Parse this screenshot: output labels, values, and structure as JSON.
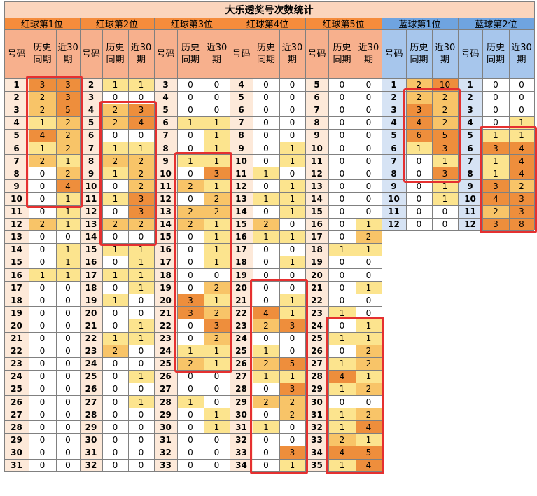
{
  "title": "大乐透奖号次数统计",
  "groups": [
    {
      "label": "红球第1位",
      "kind": "red",
      "rows": [
        [
          1,
          3,
          3
        ],
        [
          2,
          2,
          3
        ],
        [
          3,
          2,
          5
        ],
        [
          4,
          1,
          2
        ],
        [
          5,
          4,
          2
        ],
        [
          6,
          1,
          2
        ],
        [
          7,
          2,
          1
        ],
        [
          8,
          0,
          2
        ],
        [
          9,
          0,
          4
        ],
        [
          10,
          0,
          1
        ],
        [
          11,
          0,
          1
        ],
        [
          12,
          2,
          1
        ],
        [
          13,
          0,
          0
        ],
        [
          14,
          0,
          1
        ],
        [
          15,
          0,
          1
        ],
        [
          16,
          1,
          1
        ],
        [
          17,
          0,
          0
        ],
        [
          18,
          0,
          0
        ],
        [
          19,
          0,
          0
        ],
        [
          20,
          0,
          0
        ],
        [
          21,
          0,
          0
        ],
        [
          22,
          0,
          0
        ],
        [
          23,
          0,
          0
        ],
        [
          24,
          0,
          0
        ],
        [
          25,
          0,
          0
        ],
        [
          26,
          0,
          0
        ],
        [
          27,
          0,
          0
        ],
        [
          28,
          0,
          0
        ],
        [
          29,
          0,
          0
        ],
        [
          30,
          0,
          0
        ],
        [
          31,
          0,
          0
        ]
      ]
    },
    {
      "label": "红球第2位",
      "kind": "red",
      "rows": [
        [
          2,
          1,
          1
        ],
        [
          3,
          0,
          0
        ],
        [
          4,
          2,
          3
        ],
        [
          5,
          2,
          4
        ],
        [
          6,
          0,
          0
        ],
        [
          7,
          1,
          1
        ],
        [
          8,
          2,
          2
        ],
        [
          9,
          1,
          2
        ],
        [
          10,
          0,
          2
        ],
        [
          11,
          1,
          3
        ],
        [
          12,
          0,
          3
        ],
        [
          13,
          2,
          2
        ],
        [
          14,
          0,
          0
        ],
        [
          15,
          1,
          1
        ],
        [
          16,
          0,
          1
        ],
        [
          17,
          1,
          1
        ],
        [
          18,
          0,
          1
        ],
        [
          19,
          1,
          0
        ],
        [
          20,
          0,
          0
        ],
        [
          21,
          0,
          1
        ],
        [
          22,
          1,
          1
        ],
        [
          23,
          2,
          0
        ],
        [
          24,
          0,
          0
        ],
        [
          25,
          0,
          1
        ],
        [
          26,
          0,
          0
        ],
        [
          27,
          0,
          1
        ],
        [
          28,
          0,
          0
        ],
        [
          29,
          0,
          0
        ],
        [
          30,
          0,
          0
        ],
        [
          31,
          0,
          0
        ],
        [
          32,
          0,
          0
        ]
      ]
    },
    {
      "label": "红球第3位",
      "kind": "red",
      "rows": [
        [
          3,
          0,
          0
        ],
        [
          4,
          0,
          0
        ],
        [
          5,
          0,
          0
        ],
        [
          6,
          1,
          1
        ],
        [
          7,
          0,
          1
        ],
        [
          8,
          0,
          1
        ],
        [
          9,
          1,
          1
        ],
        [
          10,
          0,
          3
        ],
        [
          11,
          2,
          1
        ],
        [
          12,
          0,
          2
        ],
        [
          13,
          2,
          2
        ],
        [
          14,
          2,
          1
        ],
        [
          15,
          0,
          1
        ],
        [
          16,
          0,
          1
        ],
        [
          17,
          0,
          1
        ],
        [
          18,
          0,
          0
        ],
        [
          19,
          0,
          2
        ],
        [
          20,
          3,
          1
        ],
        [
          21,
          3,
          2
        ],
        [
          22,
          0,
          3
        ],
        [
          23,
          0,
          2
        ],
        [
          24,
          1,
          1
        ],
        [
          25,
          2,
          1
        ],
        [
          26,
          0,
          0
        ],
        [
          27,
          0,
          0
        ],
        [
          28,
          1,
          0
        ],
        [
          29,
          0,
          1
        ],
        [
          30,
          0,
          1
        ],
        [
          31,
          0,
          0
        ],
        [
          32,
          0,
          0
        ],
        [
          33,
          0,
          0
        ]
      ]
    },
    {
      "label": "红球第4位",
      "kind": "red",
      "rows": [
        [
          4,
          0,
          0
        ],
        [
          5,
          0,
          0
        ],
        [
          6,
          0,
          0
        ],
        [
          7,
          0,
          0
        ],
        [
          8,
          0,
          0
        ],
        [
          9,
          0,
          1
        ],
        [
          10,
          0,
          1
        ],
        [
          11,
          1,
          0
        ],
        [
          12,
          0,
          1
        ],
        [
          13,
          1,
          1
        ],
        [
          14,
          0,
          1
        ],
        [
          15,
          2,
          0
        ],
        [
          16,
          1,
          1
        ],
        [
          17,
          0,
          0
        ],
        [
          18,
          0,
          1
        ],
        [
          19,
          0,
          0
        ],
        [
          20,
          0,
          0
        ],
        [
          21,
          0,
          1
        ],
        [
          22,
          4,
          1
        ],
        [
          23,
          2,
          3
        ],
        [
          24,
          0,
          0
        ],
        [
          25,
          1,
          0
        ],
        [
          26,
          2,
          5
        ],
        [
          27,
          1,
          1
        ],
        [
          28,
          0,
          3
        ],
        [
          29,
          2,
          2
        ],
        [
          30,
          0,
          2
        ],
        [
          31,
          1,
          0
        ],
        [
          32,
          0,
          0
        ],
        [
          33,
          0,
          3
        ],
        [
          34,
          0,
          1
        ]
      ]
    },
    {
      "label": "红球第5位",
      "kind": "red",
      "rows": [
        [
          5,
          0,
          0
        ],
        [
          6,
          0,
          0
        ],
        [
          7,
          0,
          0
        ],
        [
          8,
          0,
          0
        ],
        [
          9,
          0,
          0
        ],
        [
          10,
          0,
          0
        ],
        [
          11,
          0,
          0
        ],
        [
          12,
          0,
          0
        ],
        [
          13,
          0,
          0
        ],
        [
          14,
          0,
          0
        ],
        [
          15,
          0,
          0
        ],
        [
          16,
          0,
          1
        ],
        [
          17,
          0,
          2
        ],
        [
          18,
          1,
          1
        ],
        [
          19,
          0,
          0
        ],
        [
          20,
          0,
          0
        ],
        [
          21,
          0,
          1
        ],
        [
          22,
          0,
          0
        ],
        [
          23,
          1,
          0
        ],
        [
          24,
          0,
          1
        ],
        [
          25,
          1,
          1
        ],
        [
          26,
          0,
          2
        ],
        [
          27,
          1,
          2
        ],
        [
          28,
          4,
          1
        ],
        [
          29,
          1,
          2
        ],
        [
          30,
          0,
          0
        ],
        [
          31,
          1,
          2
        ],
        [
          32,
          1,
          4
        ],
        [
          33,
          2,
          1
        ],
        [
          34,
          4,
          5
        ],
        [
          35,
          1,
          4
        ]
      ]
    },
    {
      "label": "蓝球第1位",
      "kind": "blue",
      "rows": [
        [
          1,
          2,
          10
        ],
        [
          2,
          2,
          2
        ],
        [
          3,
          3,
          2
        ],
        [
          4,
          4,
          2
        ],
        [
          5,
          6,
          5
        ],
        [
          6,
          1,
          3
        ],
        [
          7,
          0,
          1
        ],
        [
          8,
          0,
          3
        ],
        [
          9,
          0,
          1
        ],
        [
          10,
          0,
          1
        ],
        [
          11,
          0,
          0
        ],
        [
          12,
          0,
          0
        ]
      ]
    },
    {
      "label": "蓝球第2位",
      "kind": "blue",
      "rows": [
        [
          1,
          0,
          0
        ],
        [
          2,
          0,
          0
        ],
        [
          3,
          0,
          0
        ],
        [
          4,
          0,
          1
        ],
        [
          5,
          1,
          1
        ],
        [
          6,
          3,
          4
        ],
        [
          7,
          1,
          4
        ],
        [
          8,
          1,
          4
        ],
        [
          9,
          3,
          2
        ],
        [
          10,
          4,
          3
        ],
        [
          11,
          2,
          3
        ],
        [
          12,
          3,
          8
        ]
      ]
    }
  ],
  "subheaders": {
    "num": "号码",
    "hist": "历史同期",
    "recent": "近30期"
  },
  "colors": {
    "title_bg": "#fbd5bd",
    "red_header": "#f58c3c",
    "red_sub": "#f7b08d",
    "red_num": "#fde9d9",
    "blue_header": "#6fa4e0",
    "blue_sub": "#a7c6ec",
    "blue_num": "#d6e3f4",
    "heat_1": "#fce48e",
    "heat_2": "#f8c468",
    "heat_high": "#ee8e3c",
    "highlight_box": "#e53030"
  },
  "highlights": [
    {
      "group": 0,
      "from": 1,
      "to": 10
    },
    {
      "group": 1,
      "from": 4,
      "to": 14
    },
    {
      "group": 2,
      "from": 9,
      "to": 25
    },
    {
      "group": 3,
      "from": 20,
      "to": 34
    },
    {
      "group": 4,
      "from": 24,
      "to": 35
    },
    {
      "group": 5,
      "from": 2,
      "to": 8
    },
    {
      "group": 6,
      "from": 5,
      "to": 12
    }
  ]
}
